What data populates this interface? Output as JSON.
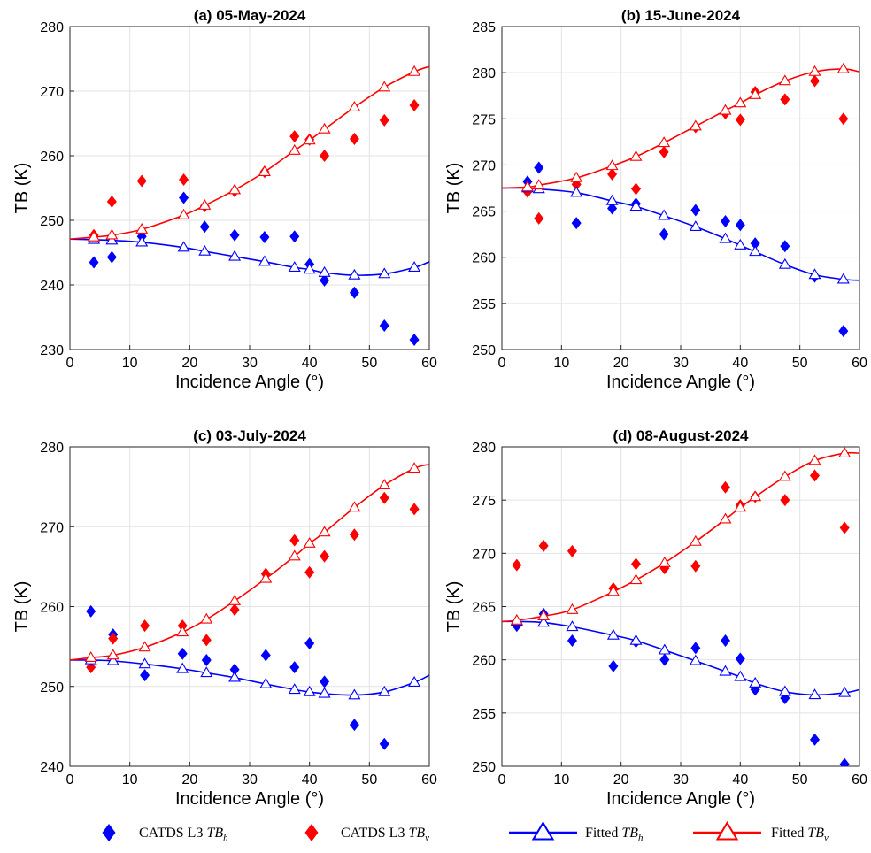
{
  "legend": {
    "items": [
      {
        "key": "l3h",
        "prefix": "CATDS L3 ",
        "sym": "TB",
        "sub": "h",
        "color": "#0000ff",
        "marker": "diamond"
      },
      {
        "key": "l3v",
        "prefix": "CATDS L3 ",
        "sym": "TB",
        "sub": "v",
        "color": "#ff0000",
        "marker": "diamond"
      },
      {
        "key": "fith",
        "prefix": "Fitted ",
        "sym": "TB",
        "sub": "h",
        "color": "#0000ff",
        "marker": "triangle-line"
      },
      {
        "key": "fitv",
        "prefix": "Fitted ",
        "sym": "TB",
        "sub": "v",
        "color": "#ff0000",
        "marker": "triangle-line"
      }
    ]
  },
  "chart_data": [
    {
      "type": "scatter",
      "title": "(a) 05-May-2024",
      "xlabel": "Incidence Angle (°)",
      "ylabel": "TB (K)",
      "xlim": [
        0,
        60
      ],
      "ylim": [
        230,
        280
      ],
      "xticks": [
        0,
        10,
        20,
        30,
        40,
        50,
        60
      ],
      "yticks": [
        230,
        240,
        250,
        260,
        270,
        280
      ],
      "grid": true,
      "series": [
        {
          "key": "l3h",
          "color": "#0000ff",
          "marker": "diamond",
          "x": [
            4,
            7,
            12,
            19,
            22.5,
            27.5,
            32.5,
            37.5,
            40,
            42.5,
            47.5,
            52.5,
            57.5
          ],
          "y": [
            243.5,
            244.3,
            247.5,
            253.5,
            249,
            247.7,
            247.4,
            247.5,
            243.2,
            240.7,
            238.8,
            233.7,
            231.5
          ]
        },
        {
          "key": "l3v",
          "color": "#ff0000",
          "marker": "diamond",
          "x": [
            4,
            7,
            12,
            19,
            22.5,
            27.5,
            32.5,
            37.5,
            40,
            42.5,
            47.5,
            52.5,
            57.5
          ],
          "y": [
            247.7,
            252.9,
            256.1,
            256.3,
            252.2,
            254.5,
            257.5,
            263,
            262.5,
            260,
            262.6,
            265.5,
            267.8
          ]
        },
        {
          "key": "fith",
          "color": "#0000ff",
          "marker": "triangle-line",
          "x": [
            0,
            4,
            7,
            12,
            19,
            22.5,
            27.5,
            32.5,
            37.5,
            40,
            42.5,
            47.5,
            52.5,
            57.5,
            60
          ],
          "y": [
            247.1,
            247.0,
            246.9,
            246.6,
            245.8,
            245.2,
            244.4,
            243.6,
            242.7,
            242.4,
            241.9,
            241.5,
            241.7,
            242.7,
            243.6
          ],
          "markers_x": [
            4,
            7,
            12,
            19,
            22.5,
            27.5,
            32.5,
            37.5,
            40,
            42.5,
            47.5,
            52.5,
            57.5
          ],
          "markers_y": [
            247.0,
            246.9,
            246.6,
            245.8,
            245.2,
            244.4,
            243.6,
            242.7,
            242.4,
            241.9,
            241.5,
            241.7,
            242.7
          ]
        },
        {
          "key": "fitv",
          "color": "#ff0000",
          "marker": "triangle-line",
          "x": [
            0,
            4,
            7,
            12,
            19,
            22.5,
            27.5,
            32.5,
            37.5,
            40,
            42.5,
            47.5,
            52.5,
            57.5,
            60
          ],
          "y": [
            247.1,
            247.4,
            247.7,
            248.6,
            250.8,
            252.3,
            254.7,
            257.5,
            260.8,
            262.4,
            264.1,
            267.5,
            270.6,
            273.0,
            273.8
          ],
          "markers_x": [
            4,
            7,
            12,
            19,
            22.5,
            27.5,
            32.5,
            37.5,
            40,
            42.5,
            47.5,
            52.5,
            57.5
          ],
          "markers_y": [
            247.4,
            247.7,
            248.6,
            250.8,
            252.3,
            254.7,
            257.5,
            260.8,
            262.4,
            264.1,
            267.5,
            270.6,
            273.0
          ]
        }
      ]
    },
    {
      "type": "scatter",
      "title": "(b) 15-June-2024",
      "xlabel": "Incidence Angle (°)",
      "ylabel": "TB (K)",
      "xlim": [
        0,
        60
      ],
      "ylim": [
        250,
        285
      ],
      "xticks": [
        0,
        10,
        20,
        30,
        40,
        50,
        60
      ],
      "yticks": [
        250,
        255,
        260,
        265,
        270,
        275,
        280,
        285
      ],
      "grid": true,
      "series": [
        {
          "key": "l3h",
          "color": "#0000ff",
          "marker": "diamond",
          "x": [
            4.3,
            6.2,
            12.5,
            18.5,
            22.5,
            27.2,
            32.5,
            37.5,
            40,
            42.5,
            47.5,
            52.5,
            57.3
          ],
          "y": [
            268.2,
            269.7,
            263.7,
            265.3,
            265.8,
            262.5,
            265.1,
            263.9,
            263.5,
            261.5,
            261.2,
            257.9,
            252
          ],
          "x_note": ""
        },
        {
          "key": "l3v",
          "color": "#ff0000",
          "marker": "diamond",
          "x": [
            4.3,
            6.2,
            12.5,
            18.5,
            22.5,
            27.2,
            32.5,
            37.5,
            40,
            42.5,
            47.5,
            52.5,
            57.3
          ],
          "y": [
            267.1,
            264.2,
            267.9,
            269,
            267.4,
            271.4,
            274.1,
            275.6,
            274.9,
            277.9,
            277.1,
            279.1,
            275
          ]
        },
        {
          "key": "fith",
          "color": "#0000ff",
          "marker": "triangle-line",
          "x": [
            0,
            4.3,
            6.2,
            12.5,
            18.5,
            22.5,
            27.2,
            32.5,
            37.5,
            40,
            42.5,
            47.5,
            52.5,
            57.3,
            60
          ],
          "y": [
            267.5,
            267.5,
            267.4,
            267.0,
            266.1,
            265.5,
            264.5,
            263.3,
            262.0,
            261.3,
            260.6,
            259.2,
            258.1,
            257.6,
            257.5
          ],
          "markers_x": [
            4.3,
            6.2,
            12.5,
            18.5,
            22.5,
            27.2,
            32.5,
            37.5,
            40,
            42.5,
            47.5,
            52.5,
            57.3
          ],
          "markers_y": [
            267.5,
            267.4,
            267.0,
            266.1,
            265.5,
            264.5,
            263.3,
            262.0,
            261.3,
            260.6,
            259.2,
            258.1,
            257.6
          ]
        },
        {
          "key": "fitv",
          "color": "#ff0000",
          "marker": "triangle-line",
          "x": [
            0,
            4.3,
            6.2,
            12.5,
            18.5,
            22.5,
            27.2,
            32.5,
            37.5,
            40,
            42.5,
            47.5,
            52.5,
            57.3,
            60
          ],
          "y": [
            267.5,
            267.6,
            267.8,
            268.6,
            269.9,
            270.9,
            272.4,
            274.2,
            275.9,
            276.7,
            277.6,
            279.1,
            280.1,
            280.4,
            280.1
          ],
          "markers_x": [
            4.3,
            6.2,
            12.5,
            18.5,
            22.5,
            27.2,
            32.5,
            37.5,
            40,
            42.5,
            47.5,
            52.5,
            57.3
          ],
          "markers_y": [
            267.6,
            267.8,
            268.6,
            269.9,
            270.9,
            272.4,
            274.2,
            275.9,
            276.7,
            277.6,
            279.1,
            280.1,
            280.4
          ]
        }
      ]
    },
    {
      "type": "scatter",
      "title": "(c) 03-July-2024",
      "xlabel": "Incidence Angle (°)",
      "ylabel": "TB (K)",
      "xlim": [
        0,
        60
      ],
      "ylim": [
        240,
        280
      ],
      "xticks": [
        0,
        10,
        20,
        30,
        40,
        50,
        60
      ],
      "yticks": [
        240,
        250,
        260,
        270,
        280
      ],
      "grid": true,
      "series": [
        {
          "key": "l3h",
          "color": "#0000ff",
          "marker": "diamond",
          "x": [
            3.5,
            7.2,
            12.5,
            18.8,
            22.8,
            27.5,
            32.7,
            37.5,
            40,
            42.5,
            47.5,
            52.5
          ],
          "y": [
            259.4,
            256.5,
            251.4,
            254.1,
            253.3,
            252.1,
            253.9,
            252.4,
            255.4,
            250.6,
            245.2,
            242.8
          ]
        },
        {
          "key": "l3v",
          "color": "#ff0000",
          "marker": "diamond",
          "x": [
            3.5,
            7.2,
            12.5,
            18.8,
            22.8,
            27.5,
            32.7,
            37.5,
            40,
            42.5,
            47.5,
            52.5,
            57.5
          ],
          "y": [
            252.4,
            256.0,
            257.6,
            257.6,
            255.8,
            259.6,
            264.1,
            268.3,
            264.3,
            266.3,
            269.0,
            273.6,
            272.2
          ]
        },
        {
          "key": "fith",
          "color": "#0000ff",
          "marker": "triangle-line",
          "x": [
            0,
            3.5,
            7.2,
            12.5,
            18.8,
            22.8,
            27.5,
            32.7,
            37.5,
            40,
            42.5,
            47.5,
            52.5,
            57.5,
            60
          ],
          "y": [
            253.3,
            253.3,
            253.2,
            252.8,
            252.2,
            251.7,
            251.1,
            250.3,
            249.6,
            249.3,
            249.1,
            248.9,
            249.3,
            250.5,
            251.4
          ],
          "markers_x": [
            3.5,
            7.2,
            12.5,
            18.8,
            22.8,
            27.5,
            32.7,
            37.5,
            40,
            42.5,
            47.5,
            52.5,
            57.5
          ],
          "markers_y": [
            253.3,
            253.2,
            252.8,
            252.2,
            251.7,
            251.1,
            250.3,
            249.6,
            249.3,
            249.1,
            248.9,
            249.3,
            250.5
          ]
        },
        {
          "key": "fitv",
          "color": "#ff0000",
          "marker": "triangle-line",
          "x": [
            0,
            3.5,
            7.2,
            12.5,
            18.8,
            22.8,
            27.5,
            32.7,
            37.5,
            40,
            42.5,
            47.5,
            52.5,
            57.5,
            60
          ],
          "y": [
            253.3,
            253.6,
            253.9,
            254.9,
            256.8,
            258.4,
            260.7,
            263.5,
            266.3,
            267.9,
            269.3,
            272.4,
            275.2,
            277.3,
            277.8
          ],
          "markers_x": [
            3.5,
            7.2,
            12.5,
            18.8,
            22.8,
            27.5,
            32.7,
            37.5,
            40,
            42.5,
            47.5,
            52.5,
            57.5
          ],
          "markers_y": [
            253.6,
            253.9,
            254.9,
            256.8,
            258.4,
            260.7,
            263.5,
            266.3,
            267.9,
            269.3,
            272.4,
            275.2,
            277.3
          ]
        }
      ]
    },
    {
      "type": "scatter",
      "title": "(d) 08-August-2024",
      "xlabel": "Incidence Angle (°)",
      "ylabel": "TB (K)",
      "xlim": [
        0,
        60
      ],
      "ylim": [
        250,
        280
      ],
      "xticks": [
        0,
        10,
        20,
        30,
        40,
        50,
        60
      ],
      "yticks": [
        250,
        255,
        260,
        265,
        270,
        275,
        280
      ],
      "grid": true,
      "series": [
        {
          "key": "l3h",
          "color": "#0000ff",
          "marker": "diamond",
          "x": [
            2.5,
            7,
            11.8,
            18.7,
            22.5,
            27.3,
            32.5,
            37.5,
            40,
            42.5,
            47.5,
            52.5,
            57.5
          ],
          "y": [
            263.2,
            264.3,
            261.8,
            259.4,
            261.7,
            260,
            261.1,
            261.8,
            260.1,
            257.2,
            256.4,
            252.5,
            250.2
          ]
        },
        {
          "key": "l3v",
          "color": "#ff0000",
          "marker": "diamond",
          "x": [
            2.5,
            7,
            11.8,
            18.7,
            22.5,
            27.3,
            32.5,
            37.5,
            40,
            42.5,
            47.5,
            52.5,
            57.5
          ],
          "y": [
            268.9,
            270.7,
            270.2,
            266.7,
            269.0,
            268.6,
            268.8,
            276.2,
            274.5,
            275.3,
            275.0,
            277.3,
            272.4
          ]
        },
        {
          "key": "fith",
          "color": "#0000ff",
          "marker": "triangle-line",
          "x": [
            0,
            2.5,
            7,
            11.8,
            18.7,
            22.5,
            27.3,
            32.5,
            37.5,
            40,
            42.5,
            47.5,
            52.5,
            57.5,
            60
          ],
          "y": [
            263.6,
            263.6,
            263.5,
            263.1,
            262.3,
            261.8,
            260.9,
            259.9,
            258.9,
            258.4,
            257.8,
            257.0,
            256.7,
            256.9,
            257.2
          ],
          "markers_x": [
            2.5,
            7,
            11.8,
            18.7,
            22.5,
            27.3,
            32.5,
            37.5,
            40,
            42.5,
            47.5,
            52.5,
            57.5
          ],
          "markers_y": [
            263.6,
            263.5,
            263.1,
            262.3,
            261.8,
            260.9,
            259.9,
            258.9,
            258.4,
            257.8,
            257.0,
            256.7,
            256.9
          ]
        },
        {
          "key": "fitv",
          "color": "#ff0000",
          "marker": "triangle-line",
          "x": [
            0,
            2.5,
            7,
            11.8,
            18.7,
            22.5,
            27.3,
            32.5,
            37.5,
            40,
            42.5,
            47.5,
            52.5,
            57.5,
            60
          ],
          "y": [
            263.6,
            263.7,
            264.1,
            264.7,
            266.4,
            267.5,
            269.1,
            271.1,
            273.2,
            274.3,
            275.3,
            277.2,
            278.7,
            279.4,
            279.4
          ],
          "markers_x": [
            2.5,
            7,
            11.8,
            18.7,
            22.5,
            27.3,
            32.5,
            37.5,
            40,
            42.5,
            47.5,
            52.5,
            57.5
          ],
          "markers_y": [
            263.7,
            264.1,
            264.7,
            266.4,
            267.5,
            269.1,
            271.1,
            273.2,
            274.3,
            275.3,
            277.2,
            278.7,
            279.4
          ]
        }
      ]
    }
  ]
}
